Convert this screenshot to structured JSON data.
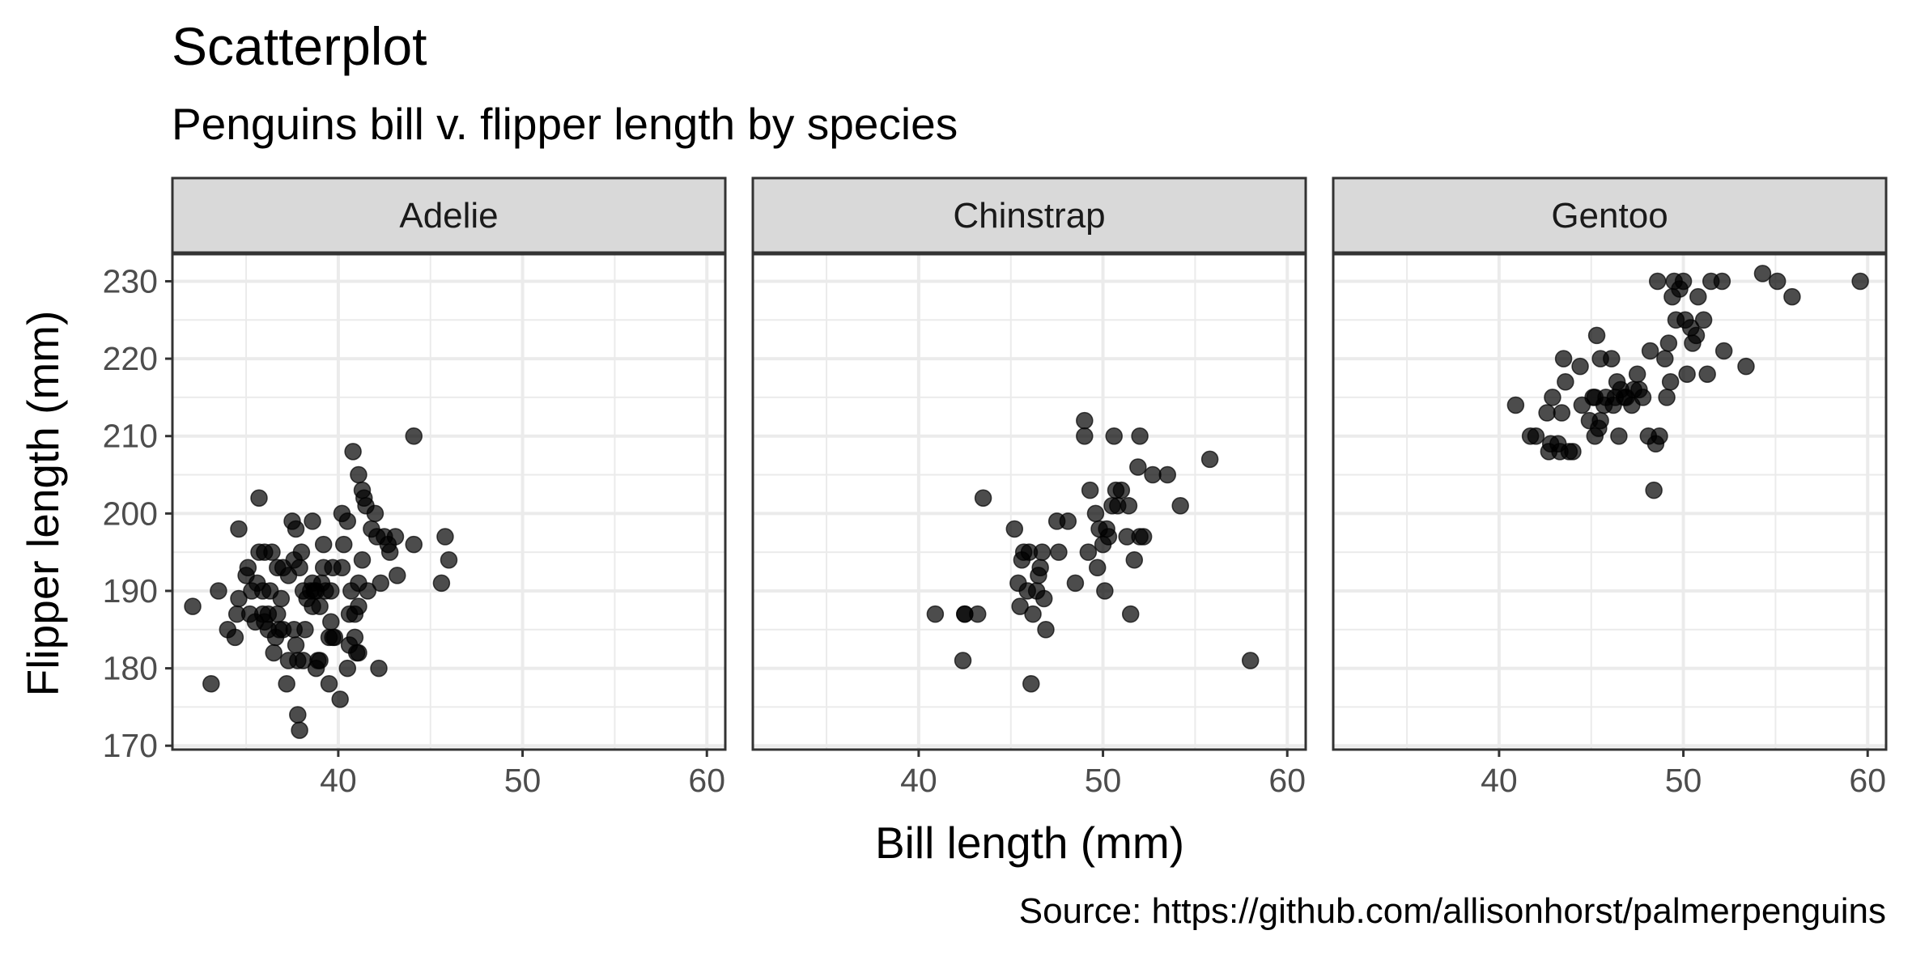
{
  "title": "Scatterplot",
  "subtitle": "Penguins bill v. flipper length by species",
  "caption": "Source: https://github.com/allisonhorst/palmerpenguins",
  "chart_data": {
    "type": "scatter",
    "title": "Scatterplot",
    "subtitle": "Penguins bill v. flipper length by species",
    "xlabel": "Bill length (mm)",
    "ylabel": "Flipper length (mm)",
    "xlim": [
      31,
      61
    ],
    "ylim": [
      169.5,
      233.5
    ],
    "x_ticks": [
      40,
      50,
      60
    ],
    "y_ticks": [
      170,
      180,
      190,
      200,
      210,
      220,
      230
    ],
    "grid": true,
    "legend": "none",
    "point_color": "#000000",
    "point_opacity": 0.7,
    "facets": [
      {
        "label": "Adelie",
        "points": [
          [
            32.1,
            188
          ],
          [
            33.1,
            178
          ],
          [
            33.5,
            190
          ],
          [
            34.0,
            185
          ],
          [
            34.4,
            184
          ],
          [
            34.5,
            187
          ],
          [
            34.6,
            198
          ],
          [
            34.6,
            189
          ],
          [
            35.0,
            192
          ],
          [
            35.1,
            193
          ],
          [
            35.2,
            187
          ],
          [
            35.3,
            190
          ],
          [
            35.5,
            186
          ],
          [
            35.6,
            191
          ],
          [
            35.7,
            202
          ],
          [
            35.7,
            195
          ],
          [
            35.9,
            190
          ],
          [
            35.9,
            187
          ],
          [
            36.0,
            195
          ],
          [
            36.0,
            186
          ],
          [
            36.2,
            187
          ],
          [
            36.2,
            185
          ],
          [
            36.3,
            190
          ],
          [
            36.4,
            195
          ],
          [
            36.5,
            182
          ],
          [
            36.6,
            184
          ],
          [
            36.7,
            187
          ],
          [
            36.7,
            193
          ],
          [
            36.8,
            185
          ],
          [
            36.9,
            189
          ],
          [
            37.0,
            185
          ],
          [
            37.0,
            193
          ],
          [
            37.2,
            178
          ],
          [
            37.3,
            192
          ],
          [
            37.3,
            181
          ],
          [
            37.5,
            199
          ],
          [
            37.6,
            185
          ],
          [
            37.6,
            194
          ],
          [
            37.7,
            183
          ],
          [
            37.7,
            198
          ],
          [
            37.8,
            174
          ],
          [
            37.8,
            181
          ],
          [
            37.9,
            172
          ],
          [
            37.9,
            193
          ],
          [
            38.0,
            195
          ],
          [
            38.1,
            181
          ],
          [
            38.1,
            190
          ],
          [
            38.2,
            185
          ],
          [
            38.3,
            189
          ],
          [
            38.5,
            190
          ],
          [
            38.6,
            199
          ],
          [
            38.6,
            188
          ],
          [
            38.6,
            191
          ],
          [
            38.7,
            190
          ],
          [
            38.8,
            190
          ],
          [
            38.8,
            180
          ],
          [
            38.9,
            181
          ],
          [
            39.0,
            181
          ],
          [
            39.0,
            188
          ],
          [
            39.1,
            191
          ],
          [
            39.2,
            193
          ],
          [
            39.2,
            196
          ],
          [
            39.3,
            190
          ],
          [
            39.5,
            178
          ],
          [
            39.5,
            184
          ],
          [
            39.6,
            186
          ],
          [
            39.6,
            190
          ],
          [
            39.7,
            184
          ],
          [
            39.7,
            193
          ],
          [
            39.8,
            184
          ],
          [
            40.1,
            176
          ],
          [
            40.2,
            200
          ],
          [
            40.2,
            193
          ],
          [
            40.3,
            196
          ],
          [
            40.5,
            199
          ],
          [
            40.5,
            180
          ],
          [
            40.6,
            183
          ],
          [
            40.6,
            187
          ],
          [
            40.7,
            190
          ],
          [
            40.8,
            208
          ],
          [
            40.9,
            184
          ],
          [
            40.9,
            187
          ],
          [
            41.0,
            182
          ],
          [
            41.1,
            191
          ],
          [
            41.1,
            182
          ],
          [
            41.1,
            205
          ],
          [
            41.1,
            188
          ],
          [
            41.3,
            194
          ],
          [
            41.3,
            203
          ],
          [
            41.4,
            202
          ],
          [
            41.5,
            201
          ],
          [
            41.6,
            190
          ],
          [
            41.8,
            198
          ],
          [
            42.0,
            200
          ],
          [
            42.1,
            197
          ],
          [
            42.2,
            180
          ],
          [
            42.3,
            191
          ],
          [
            42.5,
            197
          ],
          [
            42.7,
            196
          ],
          [
            42.8,
            195
          ],
          [
            43.1,
            197
          ],
          [
            43.2,
            192
          ],
          [
            44.1,
            210
          ],
          [
            44.1,
            196
          ],
          [
            45.6,
            191
          ],
          [
            45.8,
            197
          ],
          [
            46.0,
            194
          ]
        ]
      },
      {
        "label": "Chinstrap",
        "points": [
          [
            40.9,
            187
          ],
          [
            42.4,
            181
          ],
          [
            42.5,
            187
          ],
          [
            42.5,
            187
          ],
          [
            43.2,
            187
          ],
          [
            43.5,
            202
          ],
          [
            45.2,
            198
          ],
          [
            45.4,
            191
          ],
          [
            45.5,
            188
          ],
          [
            45.6,
            194
          ],
          [
            45.7,
            195
          ],
          [
            45.9,
            190
          ],
          [
            46.0,
            195
          ],
          [
            46.1,
            178
          ],
          [
            46.2,
            187
          ],
          [
            46.4,
            190
          ],
          [
            46.5,
            192
          ],
          [
            46.6,
            193
          ],
          [
            46.7,
            195
          ],
          [
            46.8,
            189
          ],
          [
            46.9,
            185
          ],
          [
            47.5,
            199
          ],
          [
            47.6,
            195
          ],
          [
            48.1,
            199
          ],
          [
            48.5,
            191
          ],
          [
            49.0,
            212
          ],
          [
            49.0,
            210
          ],
          [
            49.2,
            195
          ],
          [
            49.3,
            203
          ],
          [
            49.6,
            200
          ],
          [
            49.7,
            193
          ],
          [
            49.8,
            198
          ],
          [
            50.0,
            196
          ],
          [
            50.1,
            190
          ],
          [
            50.2,
            198
          ],
          [
            50.3,
            197
          ],
          [
            50.5,
            201
          ],
          [
            50.6,
            210
          ],
          [
            50.7,
            203
          ],
          [
            50.8,
            201
          ],
          [
            51.0,
            203
          ],
          [
            51.3,
            197
          ],
          [
            51.4,
            201
          ],
          [
            51.5,
            187
          ],
          [
            51.7,
            194
          ],
          [
            51.9,
            206
          ],
          [
            52.0,
            210
          ],
          [
            52.0,
            197
          ],
          [
            52.2,
            197
          ],
          [
            52.7,
            205
          ],
          [
            53.5,
            205
          ],
          [
            54.2,
            201
          ],
          [
            55.8,
            207
          ],
          [
            58.0,
            181
          ]
        ]
      },
      {
        "label": "Gentoo",
        "points": [
          [
            40.9,
            214
          ],
          [
            41.7,
            210
          ],
          [
            42.0,
            210
          ],
          [
            42.6,
            213
          ],
          [
            42.7,
            208
          ],
          [
            42.8,
            209
          ],
          [
            42.9,
            215
          ],
          [
            43.2,
            209
          ],
          [
            43.3,
            208
          ],
          [
            43.4,
            213
          ],
          [
            43.5,
            220
          ],
          [
            43.6,
            217
          ],
          [
            43.8,
            208
          ],
          [
            44.0,
            208
          ],
          [
            44.4,
            219
          ],
          [
            44.5,
            214
          ],
          [
            44.9,
            212
          ],
          [
            45.1,
            215
          ],
          [
            45.2,
            210
          ],
          [
            45.2,
            215
          ],
          [
            45.3,
            223
          ],
          [
            45.4,
            211
          ],
          [
            45.5,
            212
          ],
          [
            45.5,
            220
          ],
          [
            45.7,
            214
          ],
          [
            45.8,
            215
          ],
          [
            46.1,
            220
          ],
          [
            46.2,
            214
          ],
          [
            46.3,
            215
          ],
          [
            46.4,
            217
          ],
          [
            46.5,
            210
          ],
          [
            46.6,
            216
          ],
          [
            46.8,
            215
          ],
          [
            46.9,
            215
          ],
          [
            47.2,
            214
          ],
          [
            47.3,
            216
          ],
          [
            47.5,
            218
          ],
          [
            47.6,
            216
          ],
          [
            47.8,
            215
          ],
          [
            48.1,
            210
          ],
          [
            48.2,
            221
          ],
          [
            48.4,
            203
          ],
          [
            48.5,
            209
          ],
          [
            48.6,
            230
          ],
          [
            48.7,
            210
          ],
          [
            49.0,
            220
          ],
          [
            49.1,
            215
          ],
          [
            49.2,
            222
          ],
          [
            49.3,
            217
          ],
          [
            49.4,
            228
          ],
          [
            49.5,
            230
          ],
          [
            49.6,
            225
          ],
          [
            49.8,
            229
          ],
          [
            50.0,
            230
          ],
          [
            50.1,
            225
          ],
          [
            50.2,
            218
          ],
          [
            50.4,
            224
          ],
          [
            50.5,
            222
          ],
          [
            50.7,
            223
          ],
          [
            50.8,
            228
          ],
          [
            51.1,
            225
          ],
          [
            51.3,
            218
          ],
          [
            51.5,
            230
          ],
          [
            52.1,
            230
          ],
          [
            52.2,
            221
          ],
          [
            53.4,
            219
          ],
          [
            54.3,
            231
          ],
          [
            55.1,
            230
          ],
          [
            55.9,
            228
          ],
          [
            59.6,
            230
          ]
        ]
      }
    ]
  }
}
